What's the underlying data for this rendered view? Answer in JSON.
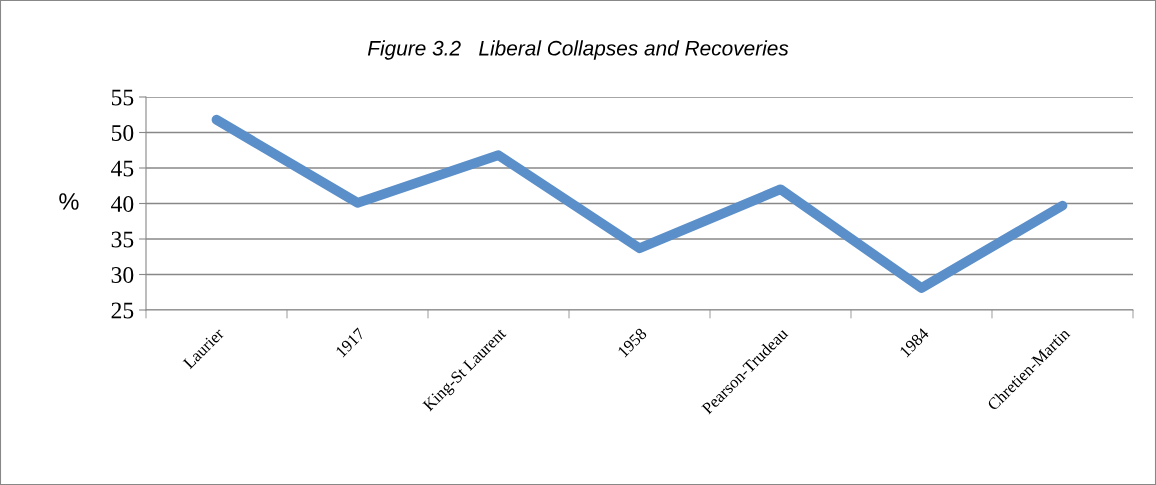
{
  "chart_data": {
    "type": "line",
    "title": "Figure 3.2   Liberal Collapses and Recoveries",
    "ylabel": "%",
    "categories": [
      "Laurier",
      "1917",
      "King-St Laurent",
      "1958",
      "Pearson-Trudeau",
      "1984",
      "Chretien-Martin"
    ],
    "series": [
      {
        "color": "#5b8fc9",
        "values": [
          51.8,
          40.1,
          46.8,
          33.7,
          42.0,
          28.1,
          39.7
        ]
      }
    ],
    "ylim": [
      25,
      55
    ],
    "yticks": [
      25,
      30,
      35,
      40,
      45,
      50,
      55
    ],
    "grid": "y",
    "legend": false,
    "marker": "none",
    "line_style": "solid"
  }
}
